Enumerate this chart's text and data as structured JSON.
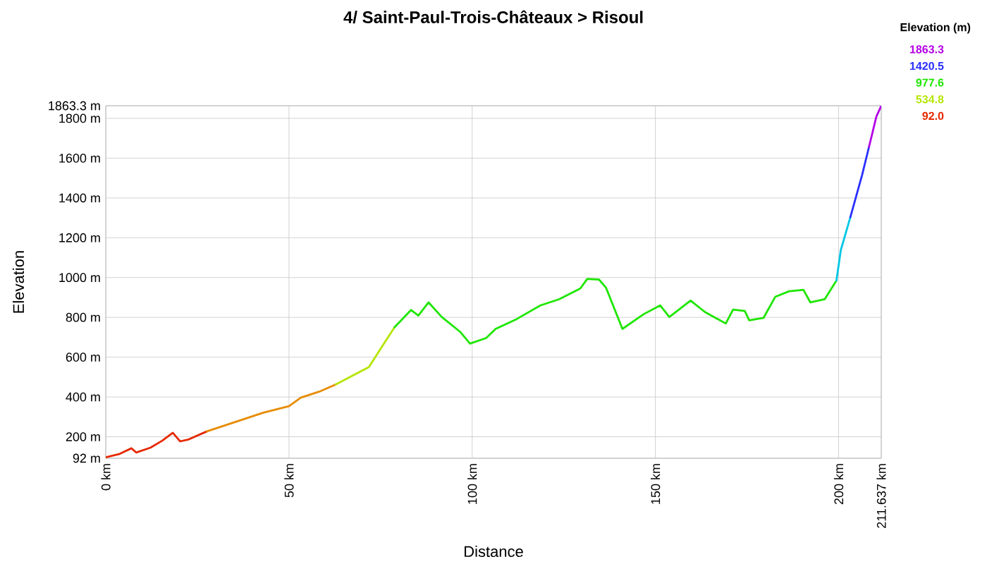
{
  "chart_data": {
    "type": "line",
    "title": "4/ Saint-Paul-Trois-Châteaux > Risoul",
    "xlabel": "Distance",
    "ylabel": "Elevation",
    "clabel": "Elevation (m)",
    "annotations": [
      "1863.3",
      "1420.5",
      "977.6",
      "534.8",
      "92.0"
    ],
    "xlim": [
      0,
      211.637
    ],
    "ylim": [
      92,
      1863.3
    ],
    "xticks": [
      {
        "value": 0,
        "label": "0 km"
      },
      {
        "value": 50,
        "label": "50 km"
      },
      {
        "value": 100,
        "label": "100 km"
      },
      {
        "value": 150,
        "label": "150 km"
      },
      {
        "value": 200,
        "label": "200 km"
      },
      {
        "value": 211.637,
        "label": "211.637 km"
      }
    ],
    "yticks": [
      {
        "value": 92,
        "label": "92 m"
      },
      {
        "value": 200,
        "label": "200 m"
      },
      {
        "value": 400,
        "label": "400 m"
      },
      {
        "value": 600,
        "label": "600 m"
      },
      {
        "value": 800,
        "label": "800 m"
      },
      {
        "value": 1000,
        "label": "1000 m"
      },
      {
        "value": 1200,
        "label": "1200 m"
      },
      {
        "value": 1400,
        "label": "1400 m"
      },
      {
        "value": 1600,
        "label": "1600 m"
      },
      {
        "value": 1800,
        "label": "1800 m"
      },
      {
        "value": 1863.3,
        "label": "1863.3 m"
      }
    ],
    "grid": true,
    "marker": "none",
    "line_style": "solid",
    "series": [
      {
        "color": "#e62800",
        "x": [
          0,
          3.8,
          7,
          8.3,
          12.2,
          15.4,
          18.3,
          20.3,
          22.4,
          27.6
        ],
        "values": [
          97,
          114,
          142,
          121,
          145,
          180,
          220,
          177,
          185,
          227
        ]
      },
      {
        "color": "#e68c00",
        "x": [
          27.6,
          35.3,
          43,
          50,
          53.2,
          58.3,
          62.8
        ],
        "values": [
          227,
          274,
          321,
          354,
          396,
          427,
          463
        ]
      },
      {
        "color": "#b4e600",
        "x": [
          62.8,
          71.8,
          76.3,
          78.8
        ],
        "values": [
          463,
          550,
          679,
          750
        ]
      },
      {
        "color": "#1ee600",
        "x": [
          78.8,
          83.3,
          85.3,
          88.1,
          91.7,
          96.8,
          99.4,
          103.8,
          106.4,
          112.2,
          118.6,
          123.7,
          129.5,
          131.4,
          134.6,
          136.5,
          141,
          146.8,
          151.3,
          153.8,
          159.6,
          163.5,
          169.2,
          171.2,
          174.4,
          175.6,
          179.5,
          182.7,
          186.5,
          190.4,
          192.3,
          196.2,
          199.4
        ],
        "values": [
          750,
          837,
          809,
          875,
          802,
          726,
          668,
          696,
          742,
          792,
          860,
          891,
          945,
          993,
          990,
          950,
          742,
          816,
          860,
          802,
          884,
          827,
          769,
          839,
          832,
          785,
          797,
          903,
          931,
          938,
          875,
          891,
          985
        ]
      },
      {
        "color": "#00c8e6",
        "x": [
          199.4,
          200.6,
          203.2
        ],
        "values": [
          985,
          1138,
          1303
        ]
      },
      {
        "color": "#2a30ff",
        "x": [
          203.2,
          206.4,
          208.3
        ],
        "values": [
          1303,
          1515,
          1657
        ]
      },
      {
        "color": "#b400e6",
        "x": [
          208.3,
          210.3,
          211.637
        ],
        "values": [
          1657,
          1809,
          1863
        ]
      }
    ]
  }
}
